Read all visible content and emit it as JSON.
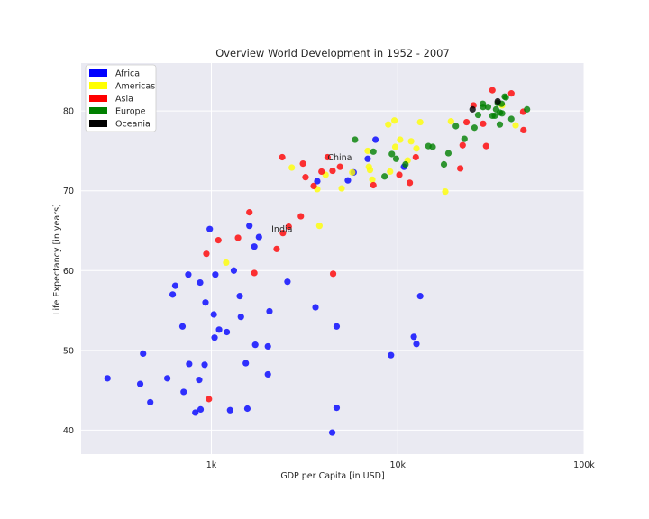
{
  "chart_data": {
    "type": "scatter",
    "title": "Overview World Development in 1952 - 2007",
    "xlabel": "GDP per Capita [in USD]",
    "ylabel": "Life Expectancy [in years]",
    "x_scale": "log",
    "xlim": [
      200,
      100000
    ],
    "ylim": [
      37,
      86
    ],
    "xticks": [
      {
        "value": 1000,
        "label": "1k"
      },
      {
        "value": 10000,
        "label": "10k"
      },
      {
        "value": 100000,
        "label": "100k"
      }
    ],
    "yticks": [
      {
        "value": 40,
        "label": "40"
      },
      {
        "value": 50,
        "label": "50"
      },
      {
        "value": 60,
        "label": "60"
      },
      {
        "value": 70,
        "label": "70"
      },
      {
        "value": 80,
        "label": "80"
      }
    ],
    "grid": true,
    "legend_position": "top-left",
    "annotations": [
      {
        "text": "China",
        "x": 4200,
        "y": 74.2
      },
      {
        "text": "India",
        "x": 2100,
        "y": 65.2
      }
    ],
    "series": [
      {
        "name": "Africa",
        "color": "#0000ff",
        "points": [
          [
            277,
            46.5
          ],
          [
            415,
            45.8
          ],
          [
            430,
            49.6
          ],
          [
            470,
            43.5
          ],
          [
            580,
            46.5
          ],
          [
            620,
            57.0
          ],
          [
            640,
            58.1
          ],
          [
            700,
            53.0
          ],
          [
            710,
            44.8
          ],
          [
            752,
            59.5
          ],
          [
            760,
            48.3
          ],
          [
            820,
            42.2
          ],
          [
            860,
            46.3
          ],
          [
            870,
            58.5
          ],
          [
            875,
            42.6
          ],
          [
            920,
            48.2
          ],
          [
            930,
            56.0
          ],
          [
            980,
            65.2
          ],
          [
            1030,
            54.5
          ],
          [
            1040,
            51.6
          ],
          [
            1050,
            59.5
          ],
          [
            1100,
            52.6
          ],
          [
            1210,
            52.3
          ],
          [
            1260,
            42.5
          ],
          [
            1320,
            60.0
          ],
          [
            1420,
            56.8
          ],
          [
            1440,
            54.2
          ],
          [
            1530,
            48.4
          ],
          [
            1560,
            42.7
          ],
          [
            1600,
            65.6
          ],
          [
            1700,
            63.0
          ],
          [
            1720,
            50.7
          ],
          [
            1800,
            64.2
          ],
          [
            2010,
            50.5
          ],
          [
            2010,
            47.0
          ],
          [
            2050,
            54.9
          ],
          [
            2560,
            58.6
          ],
          [
            3620,
            55.4
          ],
          [
            3700,
            71.2
          ],
          [
            4450,
            39.7
          ],
          [
            4700,
            42.8
          ],
          [
            4700,
            53.0
          ],
          [
            5400,
            71.3
          ],
          [
            5800,
            72.3
          ],
          [
            6900,
            74.0
          ],
          [
            7600,
            76.4
          ],
          [
            9200,
            49.4
          ],
          [
            10800,
            73.0
          ],
          [
            12200,
            51.7
          ],
          [
            12600,
            50.8
          ],
          [
            13200,
            56.8
          ]
        ]
      },
      {
        "name": "Americas",
        "color": "#ffff00",
        "points": [
          [
            1200,
            61.0
          ],
          [
            2700,
            72.9
          ],
          [
            3700,
            70.2
          ],
          [
            3800,
            65.6
          ],
          [
            4100,
            72.0
          ],
          [
            5000,
            70.3
          ],
          [
            5700,
            72.3
          ],
          [
            6900,
            75.0
          ],
          [
            7000,
            73.0
          ],
          [
            7100,
            72.6
          ],
          [
            7300,
            71.4
          ],
          [
            8900,
            78.3
          ],
          [
            9100,
            72.4
          ],
          [
            9600,
            78.8
          ],
          [
            9700,
            75.5
          ],
          [
            10300,
            76.4
          ],
          [
            11300,
            73.8
          ],
          [
            11800,
            76.2
          ],
          [
            12600,
            75.3
          ],
          [
            13200,
            78.6
          ],
          [
            18000,
            69.9
          ],
          [
            19300,
            78.7
          ],
          [
            36300,
            80.7
          ],
          [
            42900,
            78.2
          ]
        ]
      },
      {
        "name": "Asia",
        "color": "#ff0000",
        "points": [
          [
            940,
            62.1
          ],
          [
            970,
            43.9
          ],
          [
            1090,
            63.8
          ],
          [
            1390,
            64.1
          ],
          [
            1600,
            67.3
          ],
          [
            1700,
            59.7
          ],
          [
            2240,
            62.7
          ],
          [
            2400,
            74.2
          ],
          [
            2420,
            64.7
          ],
          [
            2600,
            65.5
          ],
          [
            3100,
            73.4
          ],
          [
            3020,
            66.8
          ],
          [
            3200,
            71.7
          ],
          [
            3540,
            70.6
          ],
          [
            3900,
            72.4
          ],
          [
            4200,
            74.2
          ],
          [
            4470,
            72.5
          ],
          [
            4500,
            59.6
          ],
          [
            4900,
            73.0
          ],
          [
            7400,
            70.7
          ],
          [
            10200,
            72.0
          ],
          [
            11600,
            71.0
          ],
          [
            12500,
            74.2
          ],
          [
            21650,
            72.8
          ],
          [
            22300,
            75.7
          ],
          [
            23400,
            78.6
          ],
          [
            25500,
            80.7
          ],
          [
            28700,
            78.4
          ],
          [
            29800,
            75.6
          ],
          [
            32200,
            82.6
          ],
          [
            40700,
            82.2
          ],
          [
            47100,
            79.9
          ],
          [
            47300,
            77.6
          ]
        ]
      },
      {
        "name": "Europe",
        "color": "#008000",
        "points": [
          [
            5900,
            76.4
          ],
          [
            7400,
            74.9
          ],
          [
            8500,
            71.8
          ],
          [
            9300,
            74.6
          ],
          [
            9800,
            74.0
          ],
          [
            11000,
            73.3
          ],
          [
            14600,
            75.6
          ],
          [
            15400,
            75.5
          ],
          [
            17700,
            73.3
          ],
          [
            18700,
            74.7
          ],
          [
            20500,
            78.1
          ],
          [
            22800,
            76.5
          ],
          [
            25800,
            77.9
          ],
          [
            27000,
            79.5
          ],
          [
            28600,
            80.9
          ],
          [
            28700,
            80.5
          ],
          [
            30500,
            80.5
          ],
          [
            32200,
            79.4
          ],
          [
            33200,
            79.4
          ],
          [
            33700,
            80.2
          ],
          [
            34400,
            81.0
          ],
          [
            35300,
            79.8
          ],
          [
            35300,
            78.3
          ],
          [
            36100,
            80.9
          ],
          [
            36300,
            79.7
          ],
          [
            37500,
            81.8
          ],
          [
            38000,
            81.7
          ],
          [
            40700,
            79.0
          ],
          [
            49400,
            80.2
          ]
        ]
      },
      {
        "name": "Oceania",
        "color": "#000000",
        "points": [
          [
            25200,
            80.2
          ],
          [
            34400,
            81.2
          ]
        ]
      }
    ]
  }
}
